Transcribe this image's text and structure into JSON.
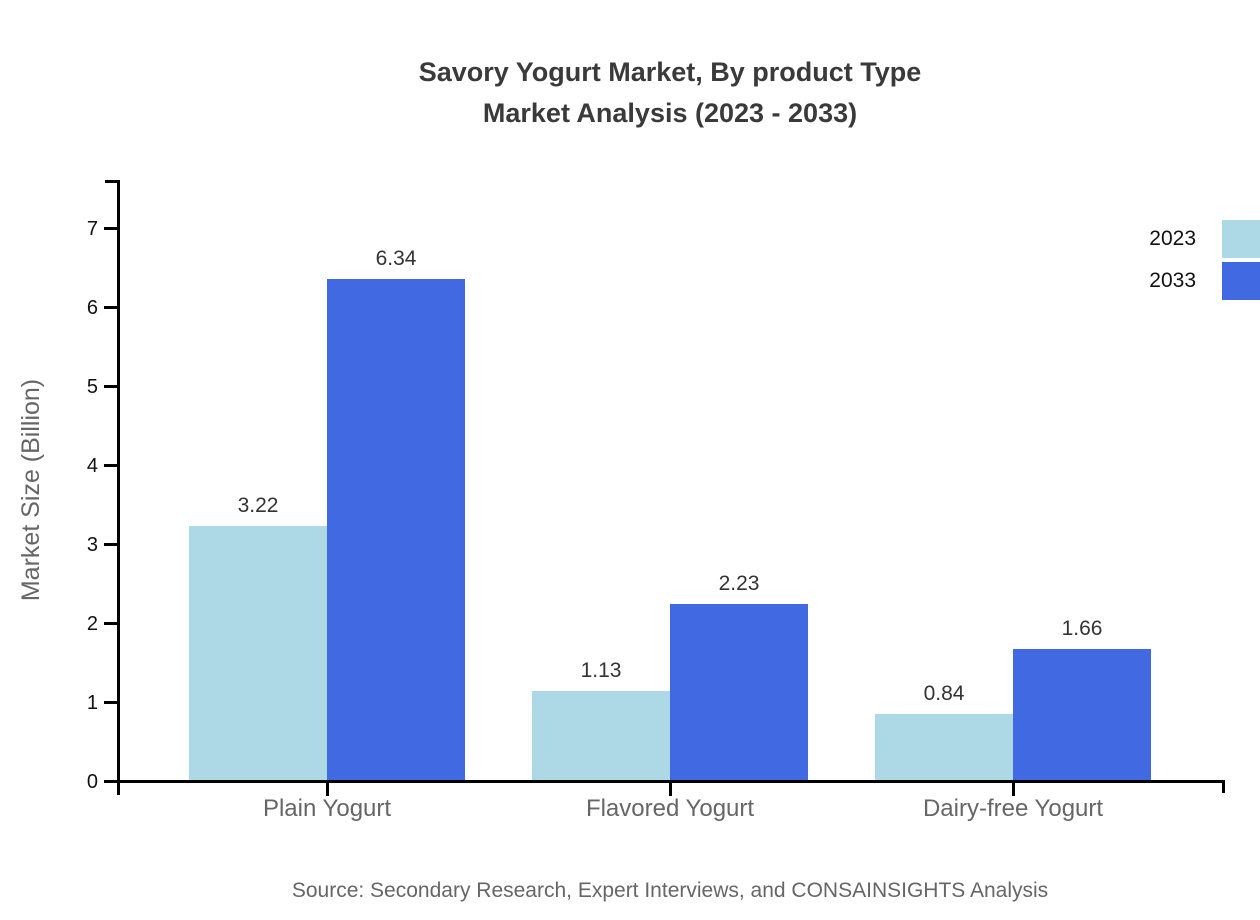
{
  "title": {
    "line1": "Savory Yogurt Market, By product Type",
    "line2": "Market Analysis (2023 - 2033)"
  },
  "source": "Source: Secondary Research, Expert Interviews, and CONSAINSIGHTS Analysis",
  "chart_data": {
    "type": "bar",
    "title": "Savory Yogurt Market, By product Type Market Analysis (2023 - 2033)",
    "categories": [
      "Plain Yogurt",
      "Flavored Yogurt",
      "Dairy-free Yogurt"
    ],
    "series": [
      {
        "name": "2023",
        "color": "#add8e6",
        "values": [
          3.22,
          1.13,
          0.84
        ]
      },
      {
        "name": "2033",
        "color": "#4169e1",
        "values": [
          6.34,
          2.23,
          1.66
        ]
      }
    ],
    "value_labels": [
      "3.22",
      "6.34",
      "1.13",
      "2.23",
      "0.84",
      "1.66"
    ],
    "xlabel": "",
    "ylabel": "Market Size (Billion)",
    "ylim": [
      0,
      7
    ],
    "y_ticks": [
      0,
      1,
      2,
      3,
      4,
      5,
      6,
      7
    ],
    "grid": false,
    "legend_position": "top-right",
    "colors": {
      "axis": "#000000",
      "title_text": "#3a3a3a",
      "tick_text": "#111111",
      "value_text": "#333333",
      "category_text": "#666666",
      "source_text": "#666666"
    }
  }
}
